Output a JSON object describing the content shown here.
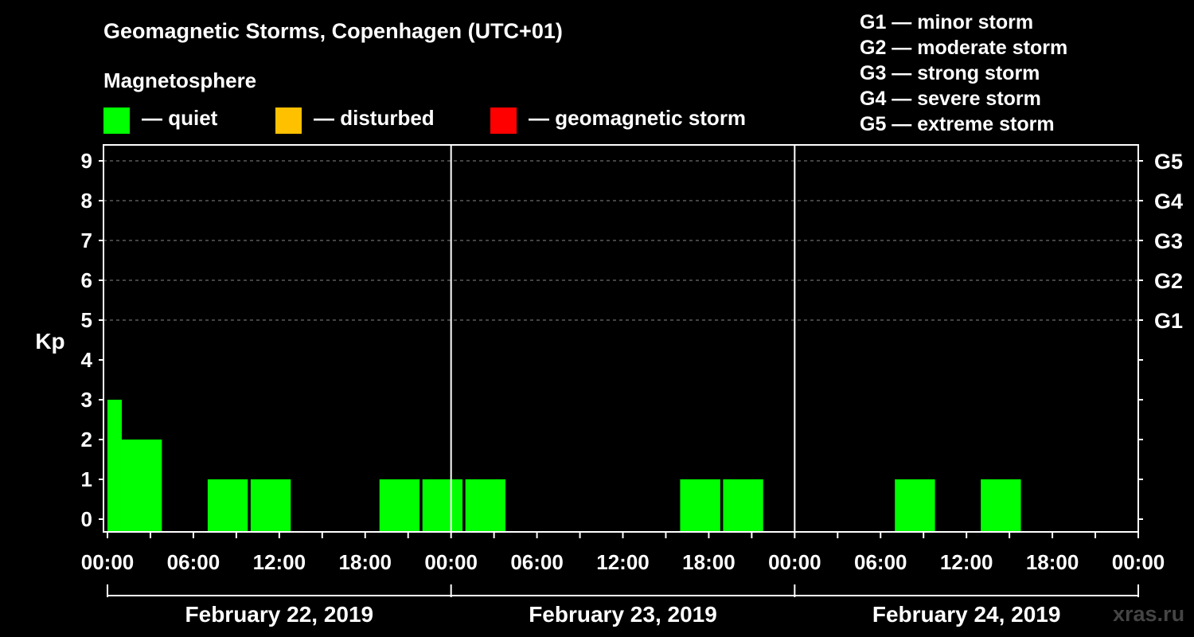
{
  "title": "Geomagnetic Storms, Copenhagen (UTC+01)",
  "magnetosphere": {
    "title": "Magnetosphere",
    "items": [
      {
        "label": "— quiet",
        "color": "#00ff00"
      },
      {
        "label": "— disturbed",
        "color": "#ffc000"
      },
      {
        "label": "— geomagnetic storm",
        "color": "#ff0000"
      }
    ]
  },
  "storm_legend": [
    "G1 — minor storm",
    "G2 — moderate storm",
    "G3 — strong storm",
    "G4 — severe storm",
    "G5 — extreme storm"
  ],
  "watermark": "xras.ru",
  "chart_data": {
    "type": "bar",
    "title": "Geomagnetic Storms, Copenhagen (UTC+01)",
    "ylabel": "Kp",
    "ylim": [
      0,
      9
    ],
    "y_ticks": [
      "0",
      "1",
      "2",
      "3",
      "4",
      "5",
      "6",
      "7",
      "8",
      "9"
    ],
    "right_ticks": [
      {
        "value": 5,
        "label": "G1"
      },
      {
        "value": 6,
        "label": "G2"
      },
      {
        "value": 7,
        "label": "G3"
      },
      {
        "value": 8,
        "label": "G4"
      },
      {
        "value": 9,
        "label": "G5"
      }
    ],
    "x_range_hours": [
      0,
      72
    ],
    "x_tick_labels": [
      "00:00",
      "06:00",
      "12:00",
      "18:00",
      "00:00",
      "06:00",
      "12:00",
      "18:00",
      "00:00",
      "06:00",
      "12:00",
      "18:00",
      "00:00"
    ],
    "days": [
      "February 22, 2019",
      "February 23, 2019",
      "February 24, 2019"
    ],
    "bars": [
      {
        "start_hour": 0,
        "end_hour": 1,
        "kp": 3
      },
      {
        "start_hour": 1,
        "end_hour": 3.8,
        "kp": 2
      },
      {
        "start_hour": 7,
        "end_hour": 9.8,
        "kp": 1
      },
      {
        "start_hour": 10,
        "end_hour": 12.8,
        "kp": 1
      },
      {
        "start_hour": 19,
        "end_hour": 21.8,
        "kp": 1
      },
      {
        "start_hour": 22,
        "end_hour": 24.8,
        "kp": 1
      },
      {
        "start_hour": 25,
        "end_hour": 27.8,
        "kp": 1
      },
      {
        "start_hour": 40,
        "end_hour": 42.8,
        "kp": 1
      },
      {
        "start_hour": 43,
        "end_hour": 45.8,
        "kp": 1
      },
      {
        "start_hour": 55,
        "end_hour": 57.8,
        "kp": 1
      },
      {
        "start_hour": 61,
        "end_hour": 63.8,
        "kp": 1
      }
    ],
    "bar_color": "#00ff00"
  }
}
